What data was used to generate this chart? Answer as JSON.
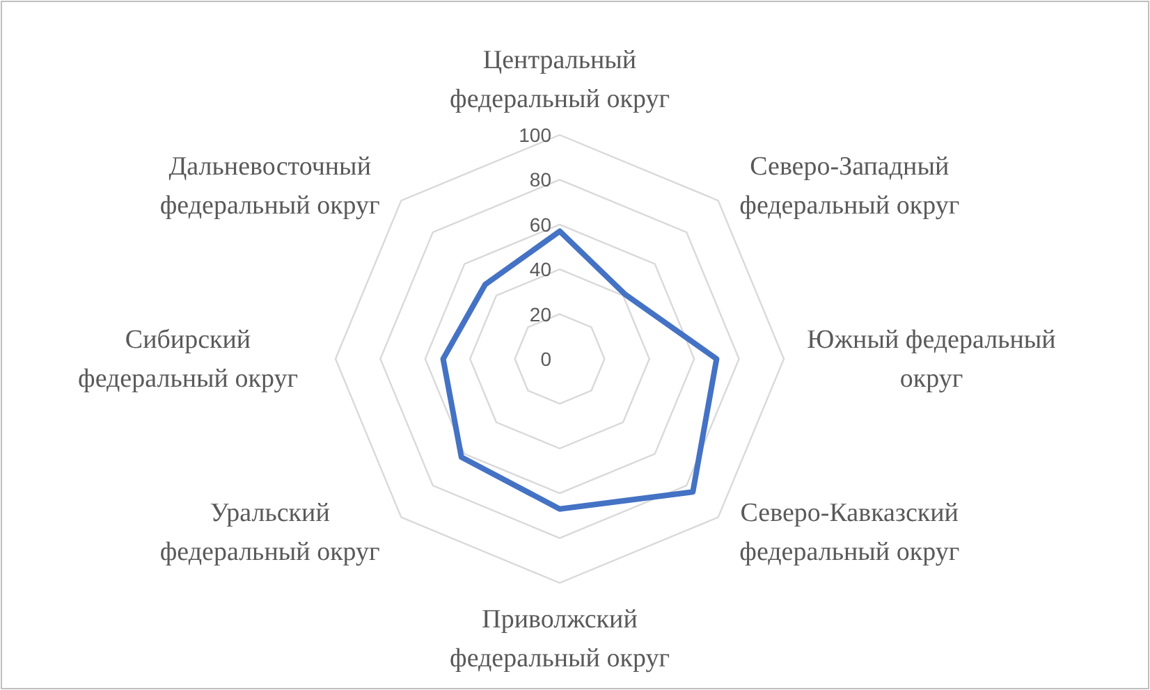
{
  "chart_data": {
    "type": "radar",
    "categories": [
      "Центральный федеральный округ",
      "Северо-Западный федеральный округ",
      "Южный федеральный округ",
      "Северо-Кавказский федеральный округ",
      "Приволжский федеральный округ",
      "Уральский федеральный округ",
      "Сибирский федеральный округ",
      "Дальневосточный федеральный округ"
    ],
    "series": [
      {
        "color": "#4472c4",
        "values": [
          57,
          41,
          70,
          84,
          67,
          62,
          52,
          47
        ]
      }
    ],
    "ylim": [
      0,
      100
    ],
    "yticks": [
      0,
      20,
      40,
      60,
      80,
      100
    ],
    "grid": true,
    "marker": "none",
    "line_style": "solid"
  }
}
